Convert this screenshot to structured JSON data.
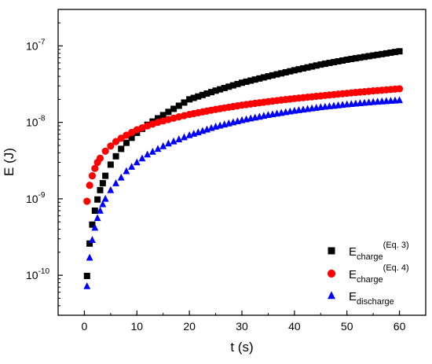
{
  "chart_data": {
    "type": "scatter",
    "title": "",
    "xlabel": "t (s)",
    "ylabel": "E (J)",
    "xlim": [
      -5,
      65
    ],
    "ylim": [
      3e-11,
      3e-07
    ],
    "yscale": "log",
    "grid": false,
    "legend_position": "bottom-right",
    "x_ticks": [
      0,
      10,
      20,
      30,
      40,
      50,
      60
    ],
    "x_tick_labels": [
      "0",
      "10",
      "20",
      "30",
      "40",
      "50",
      "60"
    ],
    "y_ticks": [
      1e-10,
      1e-09,
      1e-08,
      1e-07
    ],
    "y_tick_labels": [
      {
        "base": "10",
        "exp": "-10"
      },
      {
        "base": "10",
        "exp": "-9"
      },
      {
        "base": "10",
        "exp": "-8"
      },
      {
        "base": "10",
        "exp": "-7"
      }
    ],
    "series": [
      {
        "name": "E_charge^(Eq. 3)",
        "legend": {
          "main": "E",
          "sub": "charge",
          "sup": "(Eq. 3)"
        },
        "color": "#000000",
        "marker": "square",
        "x": [
          0.5,
          1,
          1.5,
          2,
          2.5,
          3,
          3.5,
          4,
          5,
          6,
          7,
          8,
          10,
          12,
          14,
          16,
          18,
          20,
          25,
          30,
          35,
          40,
          45,
          50,
          55,
          60
        ],
        "y": [
          9.8e-11,
          2.6e-10,
          4.6e-10,
          7e-10,
          9.8e-10,
          1.3e-09,
          1.6e-09,
          2e-09,
          2.8e-09,
          3.6e-09,
          4.5e-09,
          5.4e-09,
          7.3e-09,
          9.3e-09,
          1.13e-08,
          1.37e-08,
          1.65e-08,
          2e-08,
          2.6e-08,
          3.3e-08,
          4e-08,
          4.8e-08,
          5.7e-08,
          6.6e-08,
          7.5e-08,
          8.5e-08
        ]
      },
      {
        "name": "E_charge^(Eq. 4)",
        "legend": {
          "main": "E",
          "sub": "charge",
          "sup": "(Eq. 4)"
        },
        "color": "#ff0000",
        "marker": "circle",
        "x": [
          0.5,
          1,
          1.5,
          2,
          2.5,
          3,
          4,
          5,
          6,
          7,
          8,
          10,
          12,
          14,
          16,
          18,
          20,
          25,
          30,
          35,
          40,
          45,
          50,
          55,
          60
        ],
        "y": [
          9.3e-10,
          1.5e-09,
          2e-09,
          2.5e-09,
          3e-09,
          3.4e-09,
          4.2e-09,
          4.9e-09,
          5.6e-09,
          6.2e-09,
          6.8e-09,
          8e-09,
          9e-09,
          1e-08,
          1.09e-08,
          1.18e-08,
          1.27e-08,
          1.48e-08,
          1.68e-08,
          1.87e-08,
          2.05e-08,
          2.22e-08,
          2.4e-08,
          2.58e-08,
          2.75e-08
        ]
      },
      {
        "name": "E_discharge",
        "legend": {
          "main": "E",
          "sub": "discharge",
          "sup": ""
        },
        "color": "#0000ff",
        "marker": "triangle",
        "x": [
          0.5,
          1,
          1.5,
          2,
          2.5,
          3,
          3.5,
          4,
          5,
          6,
          7,
          8,
          10,
          12,
          14,
          16,
          18,
          20,
          25,
          30,
          35,
          40,
          45,
          50,
          55,
          60
        ],
        "y": [
          7.2e-11,
          1.7e-10,
          2.9e-10,
          4.2e-10,
          5.6e-10,
          7e-10,
          8.5e-10,
          1e-09,
          1.3e-09,
          1.6e-09,
          1.9e-09,
          2.3e-09,
          3e-09,
          3.8e-09,
          4.5e-09,
          5.3e-09,
          6e-09,
          6.8e-09,
          8.8e-09,
          1.07e-08,
          1.25e-08,
          1.42e-08,
          1.58e-08,
          1.72e-08,
          1.85e-08,
          1.95e-08
        ]
      }
    ]
  }
}
